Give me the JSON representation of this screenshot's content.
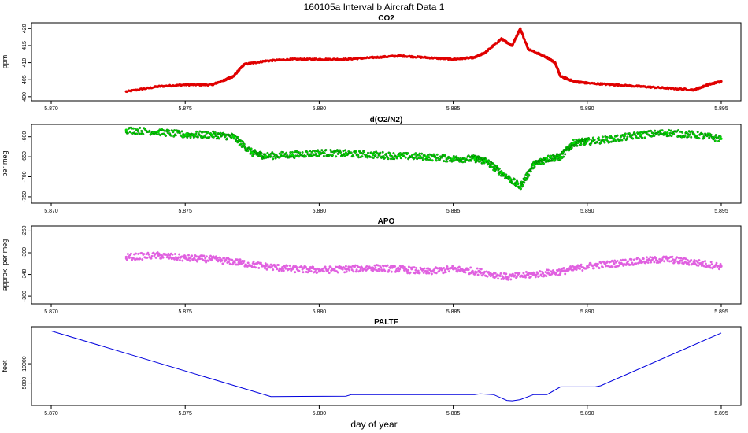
{
  "figure": {
    "title": "160105a   Interval b Aircraft Data 1",
    "xlabel": "day of year"
  },
  "chart_data": [
    {
      "type": "scatter",
      "title": "CO2",
      "ylabel": "ppm",
      "color": "#e00000",
      "xlim": [
        5.8695,
        5.8955
      ],
      "ylim": [
        399.5,
        421
      ],
      "xticks": [
        "5.870",
        "5.875",
        "5.880",
        "5.885",
        "5.890",
        "5.895"
      ],
      "xtick_values": [
        5.87,
        5.875,
        5.88,
        5.885,
        5.89,
        5.895
      ],
      "yticks": [
        "400",
        "405",
        "410",
        "415",
        "420"
      ],
      "ytick_values": [
        400,
        405,
        410,
        415,
        420
      ],
      "x": [
        5.8728,
        5.874,
        5.875,
        5.876,
        5.8765,
        5.8768,
        5.8772,
        5.878,
        5.879,
        5.88,
        5.881,
        5.882,
        5.883,
        5.884,
        5.885,
        5.8858,
        5.8862,
        5.8868,
        5.8872,
        5.8875,
        5.8878,
        5.8885,
        5.8888,
        5.889,
        5.8895,
        5.89,
        5.891,
        5.892,
        5.893,
        5.894,
        5.8945,
        5.895
      ],
      "y": [
        401.5,
        403,
        403.5,
        403.5,
        405,
        406,
        409.5,
        410.5,
        411,
        411,
        411,
        411.5,
        412,
        411.5,
        411,
        411.5,
        413,
        417,
        415,
        420,
        414,
        411.5,
        410,
        406,
        404.5,
        404,
        403.5,
        403,
        402.5,
        402,
        403.5,
        404.5
      ]
    },
    {
      "type": "scatter",
      "title": "d(O2/N2)",
      "ylabel": "per meg",
      "color": "#00dd00",
      "xlim": [
        5.8695,
        5.8955
      ],
      "ylim": [
        -760,
        -575
      ],
      "xticks": [
        "5.870",
        "5.875",
        "5.880",
        "5.885",
        "5.890",
        "5.895"
      ],
      "xtick_values": [
        5.87,
        5.875,
        5.88,
        5.885,
        5.89,
        5.895
      ],
      "yticks": [
        "-750",
        "-700",
        "-650",
        "-600"
      ],
      "ytick_values": [
        -750,
        -700,
        -650,
        -600
      ],
      "x": [
        5.8728,
        5.874,
        5.875,
        5.876,
        5.8768,
        5.8775,
        5.878,
        5.879,
        5.88,
        5.881,
        5.882,
        5.883,
        5.884,
        5.885,
        5.8858,
        5.8862,
        5.8868,
        5.8875,
        5.888,
        5.8885,
        5.889,
        5.8895,
        5.89,
        5.891,
        5.892,
        5.893,
        5.894,
        5.895
      ],
      "y": [
        -583,
        -588,
        -595,
        -595,
        -600,
        -640,
        -648,
        -645,
        -640,
        -642,
        -645,
        -648,
        -650,
        -655,
        -655,
        -660,
        -690,
        -725,
        -670,
        -655,
        -650,
        -615,
        -612,
        -605,
        -595,
        -590,
        -595,
        -605
      ]
    },
    {
      "type": "scatter",
      "title": "APO",
      "ylabel": "approx. per meg",
      "color": "#e060e0",
      "xlim": [
        5.8695,
        5.8955
      ],
      "ylim": [
        -390,
        -255
      ],
      "xticks": [
        "5.870",
        "5.875",
        "5.880",
        "5.885",
        "5.890",
        "5.895"
      ],
      "xtick_values": [
        5.87,
        5.875,
        5.88,
        5.885,
        5.89,
        5.895
      ],
      "yticks": [
        "-380",
        "-340",
        "-300",
        "-260"
      ],
      "ytick_values": [
        -380,
        -340,
        -300,
        -260
      ],
      "x": [
        5.8728,
        5.874,
        5.875,
        5.876,
        5.877,
        5.878,
        5.879,
        5.88,
        5.881,
        5.882,
        5.883,
        5.884,
        5.885,
        5.886,
        5.887,
        5.888,
        5.889,
        5.89,
        5.891,
        5.892,
        5.893,
        5.894,
        5.895
      ],
      "y": [
        -308,
        -305,
        -310,
        -312,
        -318,
        -325,
        -330,
        -332,
        -330,
        -328,
        -330,
        -335,
        -330,
        -335,
        -345,
        -340,
        -335,
        -325,
        -320,
        -315,
        -312,
        -318,
        -325
      ]
    },
    {
      "type": "line",
      "title": "PALTF",
      "ylabel": "feet",
      "color": "#0000dd",
      "xlim": [
        5.8695,
        5.8955
      ],
      "ylim": [
        -200,
        19000
      ],
      "xticks": [
        "5.870",
        "5.875",
        "5.880",
        "5.885",
        "5.890",
        "5.895"
      ],
      "xtick_values": [
        5.87,
        5.875,
        5.88,
        5.885,
        5.89,
        5.895
      ],
      "yticks": [
        "5000",
        "10000"
      ],
      "ytick_values": [
        5000,
        10000
      ],
      "x": [
        5.87,
        5.8782,
        5.881,
        5.8812,
        5.8858,
        5.886,
        5.8865,
        5.887,
        5.8872,
        5.8875,
        5.888,
        5.8885,
        5.889,
        5.8903,
        5.8905,
        5.895
      ],
      "y": [
        18500,
        1500,
        1600,
        2000,
        2000,
        2200,
        2000,
        500,
        400,
        700,
        2000,
        2000,
        4000,
        4000,
        4300,
        18000
      ]
    }
  ]
}
